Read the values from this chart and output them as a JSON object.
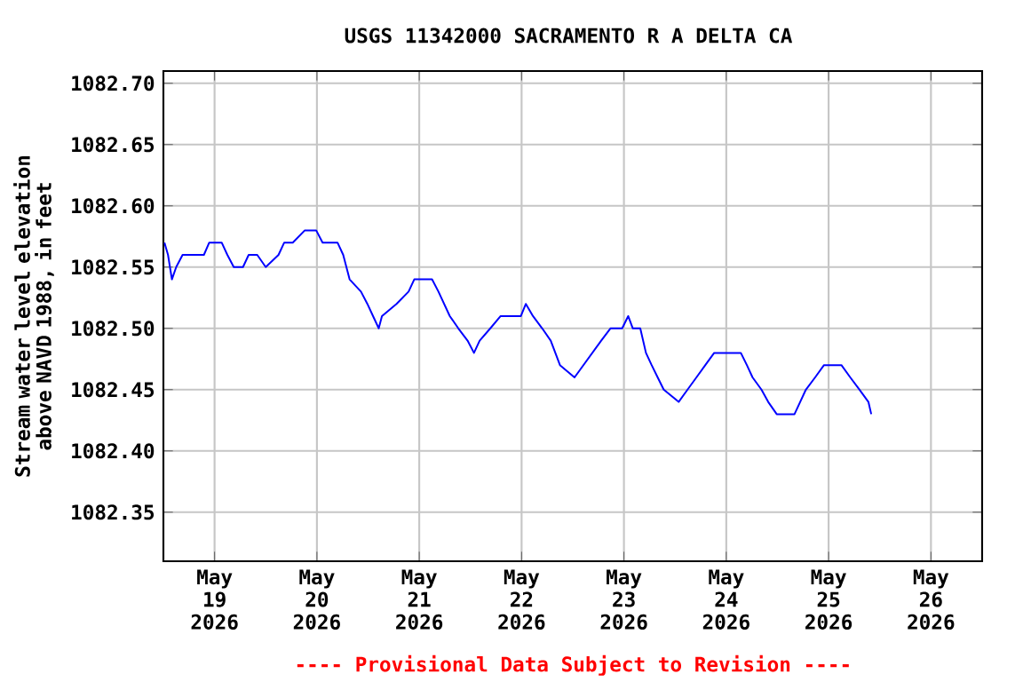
{
  "chart_data": {
    "type": "line",
    "title": "USGS 11342000 SACRAMENTO R A DELTA CA",
    "ylabel": "Stream water level elevation above NAVD 1988, in feet",
    "annotations": [
      "---- Provisional Data Subject to Revision ----"
    ],
    "xlim": [
      "2026-05-18T12:00",
      "2026-05-26T12:00"
    ],
    "xticks": [
      {
        "value": "2026-05-19",
        "label": "May 19 2026"
      },
      {
        "value": "2026-05-20",
        "label": "May 20 2026"
      },
      {
        "value": "2026-05-21",
        "label": "May 21 2026"
      },
      {
        "value": "2026-05-22",
        "label": "May 22 2026"
      },
      {
        "value": "2026-05-23",
        "label": "May 23 2026"
      },
      {
        "value": "2026-05-24",
        "label": "May 24 2026"
      },
      {
        "value": "2026-05-25",
        "label": "May 25 2026"
      },
      {
        "value": "2026-05-26",
        "label": "May 26 2026"
      }
    ],
    "ylim": [
      1082.31,
      1082.71
    ],
    "yticks": [
      {
        "value": 1082.35,
        "label": "1082.35"
      },
      {
        "value": 1082.4,
        "label": "1082.40"
      },
      {
        "value": 1082.45,
        "label": "1082.45"
      },
      {
        "value": 1082.5,
        "label": "1082.50"
      },
      {
        "value": 1082.55,
        "label": "1082.55"
      },
      {
        "value": 1082.6,
        "label": "1082.60"
      },
      {
        "value": 1082.65,
        "label": "1082.65"
      },
      {
        "value": 1082.7,
        "label": "1082.70"
      }
    ],
    "grid": true,
    "marker": "none",
    "line_style": "solid",
    "series": [
      {
        "color": "#0000ff",
        "x": [
          "2026-05-18T12:15",
          "2026-05-18T13:05",
          "2026-05-18T14:00",
          "2026-05-18T15:00",
          "2026-05-18T16:30",
          "2026-05-18T21:30",
          "2026-05-18T22:45",
          "2026-05-19T01:40",
          "2026-05-19T03:00",
          "2026-05-19T04:30",
          "2026-05-19T06:40",
          "2026-05-19T08:00",
          "2026-05-19T10:00",
          "2026-05-19T12:00",
          "2026-05-19T15:00",
          "2026-05-19T16:20",
          "2026-05-19T18:20",
          "2026-05-19T21:10",
          "2026-05-19T23:50",
          "2026-05-20T01:20",
          "2026-05-20T04:50",
          "2026-05-20T06:10",
          "2026-05-20T07:40",
          "2026-05-20T10:20",
          "2026-05-20T11:50",
          "2026-05-20T13:10",
          "2026-05-20T14:30",
          "2026-05-20T15:15",
          "2026-05-20T18:40",
          "2026-05-20T21:30",
          "2026-05-20T22:50",
          "2026-05-21T03:00",
          "2026-05-21T04:30",
          "2026-05-21T07:10",
          "2026-05-21T09:10",
          "2026-05-21T11:20",
          "2026-05-21T12:50",
          "2026-05-21T14:10",
          "2026-05-21T16:40",
          "2026-05-21T19:05",
          "2026-05-21T23:50",
          "2026-05-22T01:00",
          "2026-05-22T02:40",
          "2026-05-22T04:50",
          "2026-05-22T06:50",
          "2026-05-22T09:00",
          "2026-05-22T12:25",
          "2026-05-22T14:30",
          "2026-05-22T16:35",
          "2026-05-22T18:40",
          "2026-05-22T20:50",
          "2026-05-22T23:35",
          "2026-05-23T01:00",
          "2026-05-23T02:05",
          "2026-05-23T03:50",
          "2026-05-23T05:10",
          "2026-05-23T06:30",
          "2026-05-23T07:55",
          "2026-05-23T09:20",
          "2026-05-23T12:50",
          "2026-05-23T14:55",
          "2026-05-23T17:00",
          "2026-05-23T19:05",
          "2026-05-23T21:10",
          "2026-05-24T03:25",
          "2026-05-24T04:50",
          "2026-05-24T06:10",
          "2026-05-24T08:15",
          "2026-05-24T09:50",
          "2026-05-24T11:50",
          "2026-05-24T16:00",
          "2026-05-24T17:20",
          "2026-05-24T18:40",
          "2026-05-24T20:50",
          "2026-05-24T22:55",
          "2026-05-25T03:00",
          "2026-05-25T05:05",
          "2026-05-25T07:15",
          "2026-05-25T09:20",
          "2026-05-25T10:00"
        ],
        "values": [
          1082.57,
          1082.56,
          1082.54,
          1082.55,
          1082.56,
          1082.56,
          1082.57,
          1082.57,
          1082.56,
          1082.55,
          1082.55,
          1082.56,
          1082.56,
          1082.55,
          1082.56,
          1082.57,
          1082.57,
          1082.58,
          1082.58,
          1082.57,
          1082.57,
          1082.56,
          1082.54,
          1082.53,
          1082.52,
          1082.51,
          1082.5,
          1082.51,
          1082.52,
          1082.53,
          1082.54,
          1082.54,
          1082.53,
          1082.51,
          1082.5,
          1082.49,
          1082.48,
          1082.49,
          1082.5,
          1082.51,
          1082.51,
          1082.52,
          1082.51,
          1082.5,
          1082.49,
          1082.47,
          1082.46,
          1082.47,
          1082.48,
          1082.49,
          1082.5,
          1082.5,
          1082.51,
          1082.5,
          1082.5,
          1082.48,
          1082.47,
          1082.46,
          1082.45,
          1082.44,
          1082.45,
          1082.46,
          1082.47,
          1082.48,
          1082.48,
          1082.47,
          1082.46,
          1082.45,
          1082.44,
          1082.43,
          1082.43,
          1082.44,
          1082.45,
          1082.46,
          1082.47,
          1082.47,
          1082.46,
          1082.45,
          1082.44,
          1082.43
        ]
      }
    ]
  }
}
